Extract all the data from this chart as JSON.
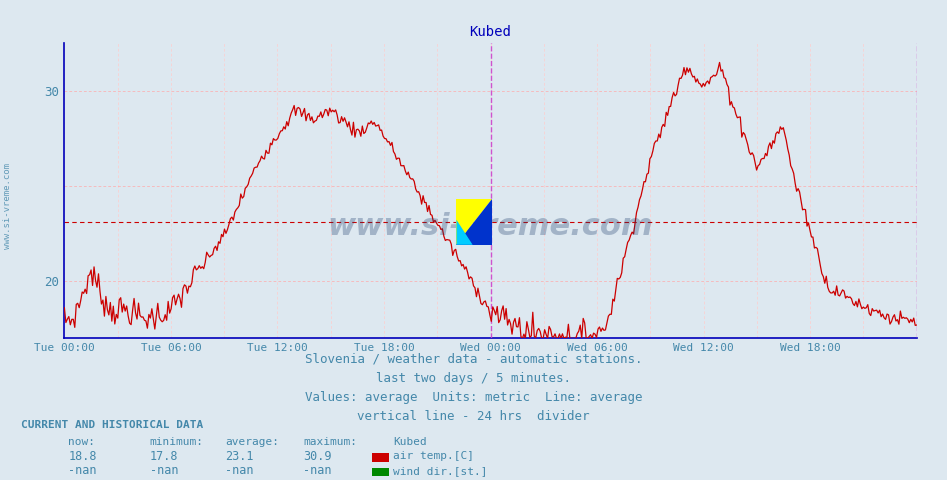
{
  "title": "Kubed",
  "title_color": "#0000bb",
  "title_fontsize": 10,
  "bg_color": "#dde8f0",
  "plot_bg_color": "#dde8f0",
  "axis_color": "#0000bb",
  "text_color": "#4488aa",
  "y_min": 17.0,
  "y_max": 32.5,
  "y_ticks": [
    20,
    30
  ],
  "grid_h_color": "#ffaaaa",
  "grid_v_color": "#ffcccc",
  "average_line_y": 23.1,
  "average_line_color": "#cc0000",
  "divider_x_hour": 24,
  "divider_color": "#cc44cc",
  "x_tick_labels": [
    "Tue 00:00",
    "Tue 06:00",
    "Tue 12:00",
    "Tue 18:00",
    "Wed 00:00",
    "Wed 06:00",
    "Wed 12:00",
    "Wed 18:00"
  ],
  "x_tick_hours": [
    0,
    6,
    12,
    18,
    24,
    30,
    36,
    42
  ],
  "watermark_text": "www.si-vreme.com",
  "watermark_color": "#1a3a6a",
  "watermark_alpha": 0.3,
  "footer_lines": [
    "Slovenia / weather data - automatic stations.",
    "last two days / 5 minutes.",
    "Values: average  Units: metric  Line: average",
    "vertical line - 24 hrs  divider"
  ],
  "footer_color": "#4488aa",
  "footer_fontsize": 9,
  "legend_title": "Kubed",
  "legend_items": [
    {
      "label": "air temp.[C]",
      "color": "#cc0000"
    },
    {
      "label": "wind dir.[st.]",
      "color": "#008800"
    }
  ],
  "stats_label": "CURRENT AND HISTORICAL DATA",
  "stats_now": "18.8",
  "stats_min": "17.8",
  "stats_avg": "23.1",
  "stats_max": "30.9",
  "line_color": "#cc0000",
  "line_width": 0.9
}
